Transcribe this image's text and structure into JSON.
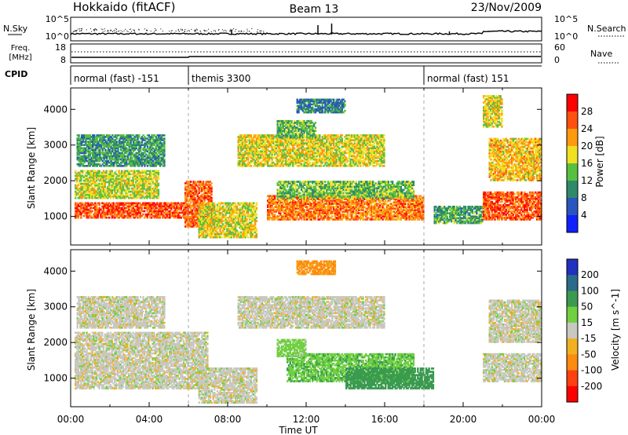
{
  "header": {
    "station": "Hokkaido (fitACF)",
    "beam": "Beam 13",
    "date": "23/Nov/2009"
  },
  "noise_panel": {
    "left_label": "N.Sky",
    "right_label": "N.Search",
    "ticks": [
      "10^5",
      "10^0"
    ]
  },
  "freq_panel": {
    "left_label_line1": "Freq.",
    "left_label_line2": "[MHz]",
    "left_ticks": [
      "18",
      "8"
    ],
    "right_label": "Nave",
    "right_ticks": [
      "60",
      "0"
    ]
  },
  "cpid": {
    "label": "CPID",
    "segments": [
      {
        "name": "normal (fast) -151",
        "start": 0,
        "end": 6
      },
      {
        "name": "themis 3300",
        "start": 6,
        "end": 18
      },
      {
        "name": "normal (fast) 151",
        "start": 18,
        "end": 24
      }
    ]
  },
  "chart_data": [
    {
      "type": "heatmap",
      "panel": "power",
      "title": "",
      "xlabel": "Time UT",
      "ylabel": "Slant Range [km]",
      "xlim": [
        0,
        24
      ],
      "ylim": [
        200,
        4600
      ],
      "x_ticks": [
        "00:00",
        "04:00",
        "08:00",
        "12:00",
        "16:00",
        "20:00",
        "00:00"
      ],
      "y_ticks": [
        "1000",
        "2000",
        "3000",
        "4000"
      ],
      "colorbar": {
        "label": "Power [dB]",
        "ticks": [
          "4",
          "8",
          "12",
          "16",
          "20",
          "24",
          "28"
        ],
        "colors": [
          "#1020ff",
          "#2a55c0",
          "#2f8a6a",
          "#58c040",
          "#f0e020",
          "#ff9a10",
          "#ff5010",
          "#ff0000"
        ]
      },
      "echo_regions": [
        {
          "t0": 0.2,
          "t1": 5.8,
          "r0": 950,
          "r1": 1400,
          "value": 26
        },
        {
          "t0": 0.2,
          "t1": 4.5,
          "r0": 1500,
          "r1": 2300,
          "value": 17
        },
        {
          "t0": 0.3,
          "t1": 4.8,
          "r0": 2400,
          "r1": 3300,
          "value": 11
        },
        {
          "t0": 5.8,
          "t1": 7.2,
          "r0": 700,
          "r1": 2000,
          "value": 25
        },
        {
          "t0": 6.5,
          "t1": 9.5,
          "r0": 400,
          "r1": 1400,
          "value": 18
        },
        {
          "t0": 10.0,
          "t1": 18.0,
          "r0": 900,
          "r1": 1600,
          "value": 24
        },
        {
          "t0": 10.5,
          "t1": 17.5,
          "r0": 1500,
          "r1": 2000,
          "value": 14
        },
        {
          "t0": 8.5,
          "t1": 16.0,
          "r0": 2400,
          "r1": 3300,
          "value": 18
        },
        {
          "t0": 10.5,
          "t1": 12.5,
          "r0": 3200,
          "r1": 3700,
          "value": 13
        },
        {
          "t0": 11.5,
          "t1": 14.0,
          "r0": 3900,
          "r1": 4300,
          "value": 9
        },
        {
          "t0": 18.5,
          "t1": 21.0,
          "r0": 800,
          "r1": 1300,
          "value": 12
        },
        {
          "t0": 21.0,
          "t1": 24.0,
          "r0": 900,
          "r1": 1700,
          "value": 26
        },
        {
          "t0": 21.3,
          "t1": 24.0,
          "r0": 2000,
          "r1": 3200,
          "value": 20
        },
        {
          "t0": 21.0,
          "t1": 22.0,
          "r0": 3500,
          "r1": 4400,
          "value": 18
        }
      ]
    },
    {
      "type": "heatmap",
      "panel": "velocity",
      "title": "",
      "xlabel": "Time UT",
      "ylabel": "Slant Range [km]",
      "xlim": [
        0,
        24
      ],
      "ylim": [
        200,
        4600
      ],
      "x_ticks": [
        "00:00",
        "04:00",
        "08:00",
        "12:00",
        "16:00",
        "20:00",
        "00:00"
      ],
      "y_ticks": [
        "1000",
        "2000",
        "3000",
        "4000"
      ],
      "colorbar": {
        "label": "Velocity [m s^-1]",
        "ticks": [
          "200",
          "100",
          "50",
          "15",
          "-15",
          "-50",
          "-100",
          "-200"
        ],
        "colors": [
          "#2030c0",
          "#2a6a8a",
          "#3a9a50",
          "#70d040",
          "#c8c8c0",
          "#f0b020",
          "#ff8a10",
          "#ff4010",
          "#ff0000"
        ]
      },
      "echo_regions": [
        {
          "t0": 0.2,
          "t1": 7.0,
          "r0": 700,
          "r1": 2300,
          "value": 0
        },
        {
          "t0": 0.3,
          "t1": 4.8,
          "r0": 2400,
          "r1": 3300,
          "value": 0
        },
        {
          "t0": 6.5,
          "t1": 9.5,
          "r0": 300,
          "r1": 1300,
          "value": 0
        },
        {
          "t0": 8.5,
          "t1": 16.0,
          "r0": 2400,
          "r1": 3300,
          "value": 0
        },
        {
          "t0": 11.0,
          "t1": 17.5,
          "r0": 900,
          "r1": 1700,
          "value": 40
        },
        {
          "t0": 14.0,
          "t1": 18.5,
          "r0": 700,
          "r1": 1300,
          "value": 80
        },
        {
          "t0": 10.5,
          "t1": 12.0,
          "r0": 1600,
          "r1": 2100,
          "value": 30
        },
        {
          "t0": 21.0,
          "t1": 24.0,
          "r0": 900,
          "r1": 1700,
          "value": 0
        },
        {
          "t0": 21.3,
          "t1": 24.0,
          "r0": 2000,
          "r1": 3200,
          "value": 0
        },
        {
          "t0": 11.5,
          "t1": 13.5,
          "r0": 3900,
          "r1": 4300,
          "value": -60
        }
      ]
    }
  ]
}
